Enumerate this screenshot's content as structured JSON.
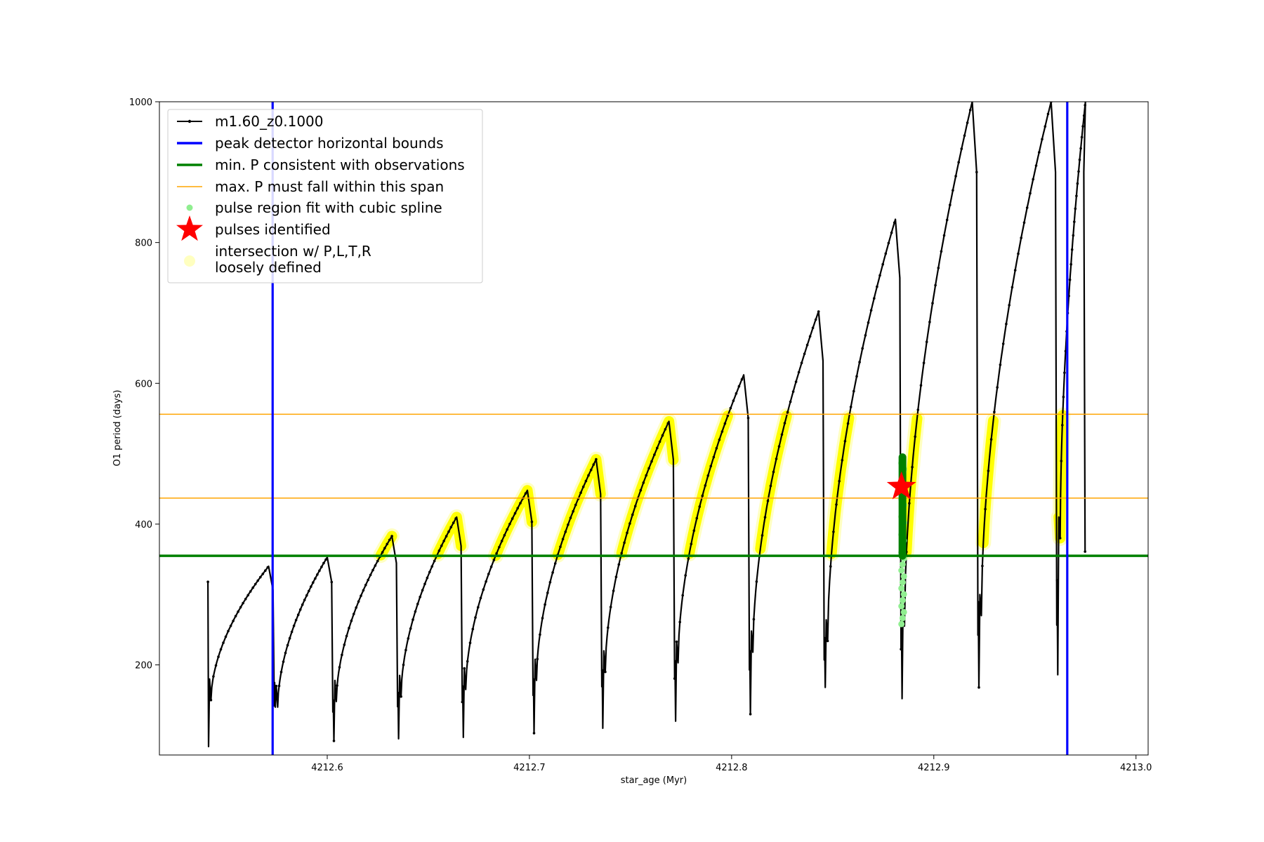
{
  "chart_data": {
    "type": "line",
    "xlabel": "star_age (Myr)",
    "ylabel": "O1 period (days)",
    "xlim": [
      4212.517,
      4213.006
    ],
    "ylim": [
      72,
      1000
    ],
    "xticks": [
      4212.6,
      4212.7,
      4212.8,
      4212.9,
      4213.0
    ],
    "xtick_labels": [
      "4212.6",
      "4212.7",
      "4212.8",
      "4212.9",
      "4213.0"
    ],
    "yticks": [
      200,
      400,
      600,
      800,
      1000
    ],
    "ytick_labels": [
      "200",
      "400",
      "600",
      "800",
      "1000"
    ],
    "grid": false,
    "legend_position": "upper-left",
    "legend": [
      {
        "key": "model",
        "label": "m1.60_z0.1000",
        "kind": "line-marker",
        "color": "#000000"
      },
      {
        "key": "bounds",
        "label": "peak detector horizontal bounds",
        "kind": "line",
        "color": "#0000ff"
      },
      {
        "key": "minp",
        "label": "min. P consistent with observations",
        "kind": "line",
        "color": "#008000"
      },
      {
        "key": "maxp",
        "label": "max. P must fall within this span",
        "kind": "thin-line",
        "color": "#ffa500"
      },
      {
        "key": "spline",
        "label": "pulse region fit with cubic spline",
        "kind": "dot",
        "color": "#90ee90"
      },
      {
        "key": "pulse",
        "label": "pulses identified",
        "kind": "star",
        "color": "#ff0000"
      },
      {
        "key": "loose",
        "label": [
          "intersection w/ P,L,T,R",
          "loosely defined"
        ],
        "kind": "big-dot",
        "color": "#ffffc0"
      }
    ],
    "colors": {
      "model": "#000000",
      "bounds": "#0000ff",
      "minp": "#008000",
      "maxp": "#ffa500",
      "yellow": "#ffff00",
      "pale_yellow": "#ffff99",
      "spline": "#90ee90",
      "pulse": "#ff0000"
    },
    "vertical_bounds_x": [
      4212.573,
      4212.966
    ],
    "min_period": 355,
    "max_period_span": [
      437,
      556
    ],
    "spike_x": [
      4212.541,
      4212.574,
      4212.603,
      4212.635,
      4212.667,
      4212.702,
      4212.736,
      4212.772,
      4212.809,
      4212.846,
      4212.884,
      4212.922,
      4212.961
    ],
    "cycles": [
      {
        "x_start": 4212.541,
        "x_peak": 4212.571,
        "x_end": 4212.574,
        "y_start": 318,
        "y_min": 84,
        "y_trough": 150,
        "y_peak": 340
      },
      {
        "x_start": 4212.574,
        "x_peak": 4212.6,
        "x_end": 4212.603,
        "y_start": 175,
        "y_min": 140,
        "y_trough": 140,
        "y_peak": 353
      },
      {
        "x_start": 4212.603,
        "x_peak": 4212.632,
        "x_end": 4212.635,
        "y_start": 150,
        "y_min": 92,
        "y_trough": 148,
        "y_peak": 383
      },
      {
        "x_start": 4212.635,
        "x_peak": 4212.664,
        "x_end": 4212.667,
        "y_start": 160,
        "y_min": 95,
        "y_trough": 155,
        "y_peak": 410
      },
      {
        "x_start": 4212.667,
        "x_peak": 4212.699,
        "x_end": 4212.702,
        "y_start": 170,
        "y_min": 97,
        "y_trough": 165,
        "y_peak": 448
      },
      {
        "x_start": 4212.702,
        "x_peak": 4212.733,
        "x_end": 4212.736,
        "y_start": 180,
        "y_min": 103,
        "y_trough": 178,
        "y_peak": 492
      },
      {
        "x_start": 4212.736,
        "x_peak": 4212.769,
        "x_end": 4212.772,
        "y_start": 192,
        "y_min": 110,
        "y_trough": 190,
        "y_peak": 546
      },
      {
        "x_start": 4212.772,
        "x_peak": 4212.806,
        "x_end": 4212.809,
        "y_start": 206,
        "y_min": 120,
        "y_trough": 203,
        "y_peak": 612
      },
      {
        "x_start": 4212.809,
        "x_peak": 4212.843,
        "x_end": 4212.846,
        "y_start": 220,
        "y_min": 130,
        "y_trough": 218,
        "y_peak": 702
      },
      {
        "x_start": 4212.846,
        "x_peak": 4212.881,
        "x_end": 4212.884,
        "y_start": 238,
        "y_min": 168,
        "y_trough": 234,
        "y_peak": 833
      },
      {
        "x_start": 4212.884,
        "x_peak": 4212.919,
        "x_end": 4212.922,
        "y_start": 270,
        "y_min": 152,
        "y_trough": 255,
        "y_peak": 1000
      },
      {
        "x_start": 4212.922,
        "x_peak": 4212.958,
        "x_end": 4212.961,
        "y_start": 290,
        "y_min": 168,
        "y_trough": 270,
        "y_peak": 1000
      },
      {
        "x_start": 4212.961,
        "x_peak": 4212.975,
        "x_end": 4212.975,
        "y_start": 320,
        "y_min": 186,
        "y_trough": 380,
        "y_peak": 1000
      }
    ],
    "pulse_identified": {
      "x": 4212.884,
      "y": 453
    },
    "spline_points": {
      "x": 4212.884,
      "y_range": [
        258,
        495
      ]
    }
  }
}
